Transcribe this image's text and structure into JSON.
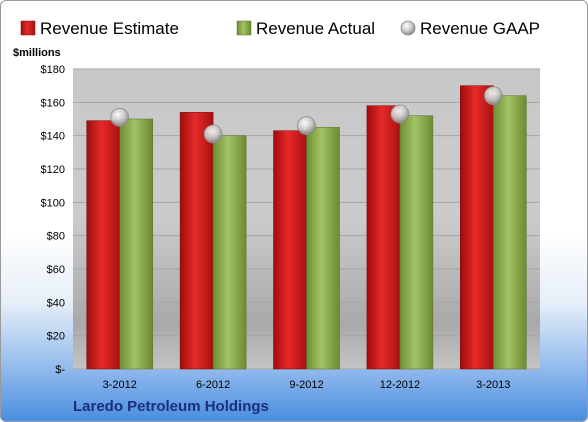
{
  "chart_data": {
    "type": "bar",
    "unit_label": "$millions",
    "categories": [
      "3-2012",
      "6-2012",
      "9-2012",
      "12-2012",
      "3-2013"
    ],
    "series": [
      {
        "name": "Revenue Estimate",
        "kind": "bar",
        "color": "#d41c1c",
        "values": [
          149,
          154,
          143,
          158,
          170
        ]
      },
      {
        "name": "Revenue Actual",
        "kind": "bar",
        "color": "#8cae4c",
        "values": [
          150,
          140,
          145,
          152,
          164
        ]
      },
      {
        "name": "Revenue GAAP",
        "kind": "marker",
        "color": "#b8b8b8",
        "values": [
          151,
          141,
          146,
          153,
          164
        ]
      }
    ],
    "ylim": [
      0,
      180
    ],
    "y_ticks": [
      0,
      20,
      40,
      60,
      80,
      100,
      120,
      140,
      160,
      180
    ],
    "y_tick_labels": [
      "$-",
      "$20",
      "$40",
      "$60",
      "$80",
      "$100",
      "$120",
      "$140",
      "$160",
      "$180"
    ],
    "grid": true,
    "legend_position": "top",
    "footer": "Laredo Petroleum Holdings"
  }
}
